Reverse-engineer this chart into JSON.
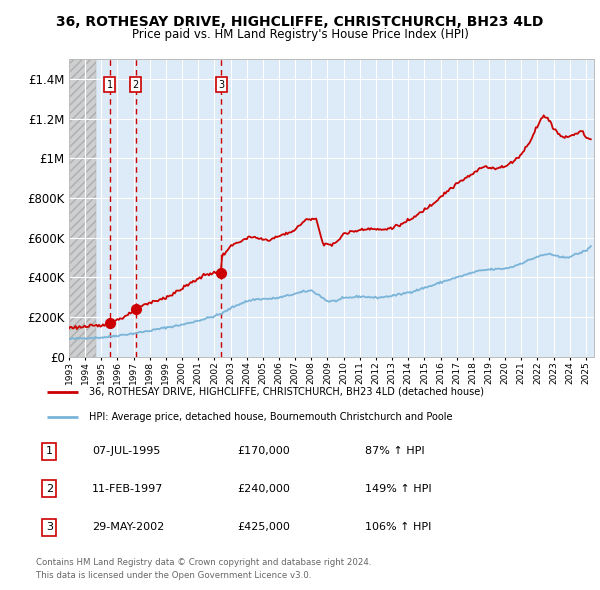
{
  "title1": "36, ROTHESAY DRIVE, HIGHCLIFFE, CHRISTCHURCH, BH23 4LD",
  "title2": "Price paid vs. HM Land Registry's House Price Index (HPI)",
  "sale_prices": [
    170000,
    240000,
    425000
  ],
  "sale_labels": [
    "1",
    "2",
    "3"
  ],
  "sale_hpi_pct": [
    "87% ↑ HPI",
    "149% ↑ HPI",
    "106% ↑ HPI"
  ],
  "sale_dates_str": [
    "07-JUL-1995",
    "11-FEB-1997",
    "29-MAY-2002"
  ],
  "sale_year_floats": [
    1995.52,
    1997.12,
    2002.42
  ],
  "legend_line1": "36, ROTHESAY DRIVE, HIGHCLIFFE, CHRISTCHURCH, BH23 4LD (detached house)",
  "legend_line2": "HPI: Average price, detached house, Bournemouth Christchurch and Poole",
  "footer1": "Contains HM Land Registry data © Crown copyright and database right 2024.",
  "footer2": "This data is licensed under the Open Government Licence v3.0.",
  "hpi_color": "#7ab4d8",
  "price_color": "#cc0000",
  "bg_chart": "#ddeaf7",
  "grid_color": "#ffffff",
  "xlim_start": 1993.0,
  "xlim_end": 2025.5,
  "ylim_min": 0,
  "ylim_max": 1500000,
  "hatch_end": 1994.7,
  "yticks": [
    0,
    200000,
    400000,
    600000,
    800000,
    1000000,
    1200000,
    1400000
  ],
  "ytick_labels": [
    "£0",
    "£200K",
    "£400K",
    "£600K",
    "£800K",
    "£1M",
    "£1.2M",
    "£1.4M"
  ]
}
